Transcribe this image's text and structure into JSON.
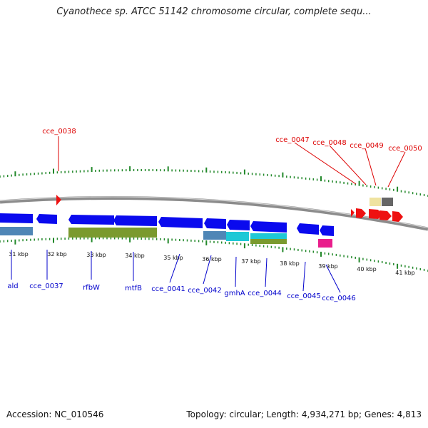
{
  "title": "Cyanothece sp. ATCC 51142 chromosome circular, complete sequ...",
  "footer": {
    "accession": "Accession: NC_010546",
    "summary": "Topology: circular; Length: 4,934,271 bp; Genes: 4,813"
  },
  "colors": {
    "backbone": "#8c8c8c",
    "tick": "#22882a",
    "reverse_gene": "#0a0aee",
    "forward_gene": "#ee1111",
    "feature_label_reverse": "#0000cc",
    "feature_label_forward": "#dd0000",
    "band_steelblue": "#4f86b6",
    "band_olive": "#7a9a2e",
    "band_cyan": "#1ec8d6",
    "band_magenta": "#e91e8c",
    "band_khaki": "#efe3a0",
    "band_gray": "#666666"
  },
  "scale_labels": [
    "31 kbp",
    "32 kbp",
    "33 kbp",
    "34 kbp",
    "35 kbp",
    "36 kbp",
    "37 kbp",
    "38 kbp",
    "39 kbp",
    "40 kbp",
    "41 kbp"
  ],
  "reverse_genes": [
    "ald",
    "cce_0037",
    "rfbW",
    "mtfB",
    "cce_0041",
    "cce_0042",
    "gmhA",
    "cce_0044",
    "cce_0045",
    "cce_0046"
  ],
  "forward_genes": [
    "cce_0038",
    "cce_0047",
    "cce_0048",
    "cce_0049",
    "cce_0050"
  ],
  "domain_bands": [
    "steelblue",
    "olive",
    "steelblue",
    "cyan",
    "cyan",
    "olive",
    "magenta",
    "khaki",
    "gray"
  ]
}
